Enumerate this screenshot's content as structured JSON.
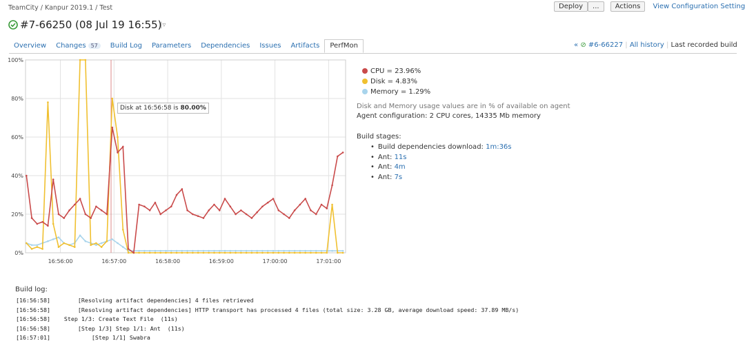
{
  "breadcrumb": {
    "items": [
      "TeamCity",
      "Kanpur 2019.1",
      "Test"
    ],
    "separator": "/"
  },
  "toolbar": {
    "deploy": "Deploy",
    "more": "...",
    "actions": "Actions",
    "settings": "View Configuration Settings"
  },
  "build_title": "#7-66250 (08 Jul 19 16:55)",
  "tabs": [
    {
      "label": "Overview"
    },
    {
      "label": "Changes",
      "badge": "57"
    },
    {
      "label": "Build Log"
    },
    {
      "label": "Parameters"
    },
    {
      "label": "Dependencies"
    },
    {
      "label": "Issues"
    },
    {
      "label": "Artifacts"
    },
    {
      "label": "PerfMon",
      "active": true
    }
  ],
  "build_nav": {
    "prev_arrow": "«",
    "prev_build": "#6-66227",
    "history": "All history",
    "last": "Last recorded build"
  },
  "chart_data": {
    "type": "line",
    "x": [
      60922,
      60928,
      60934,
      60940,
      60946,
      60952,
      60958,
      60964,
      60970,
      60976,
      60982,
      60988,
      60994,
      61000,
      61006,
      61012,
      61018,
      61024,
      61030,
      61036,
      61042,
      61048,
      61054,
      61060,
      61066,
      61072,
      61078,
      61084,
      61090,
      61096,
      61102,
      61108,
      61114,
      61120,
      61126,
      61132,
      61138,
      61144,
      61150,
      61156,
      61162,
      61168,
      61174,
      61180,
      61186,
      61192,
      61198,
      61204,
      61210,
      61216,
      61222,
      61228,
      61234,
      61240,
      61246,
      61252,
      61258,
      61264,
      61270,
      61276
    ],
    "series": [
      {
        "name": "CPU = 23.96%",
        "color": "#c94a4a",
        "values": [
          40,
          18,
          15,
          16,
          14,
          38,
          20,
          18,
          22,
          25,
          28,
          20,
          18,
          24,
          22,
          20,
          65,
          52,
          55,
          2,
          0,
          25,
          24,
          22,
          26,
          20,
          22,
          24,
          30,
          33,
          22,
          20,
          19,
          18,
          22,
          25,
          22,
          28,
          24,
          20,
          22,
          20,
          18,
          21,
          24,
          26,
          28,
          22,
          20,
          18,
          22,
          25,
          28,
          22,
          20,
          25,
          23,
          35,
          50,
          52
        ]
      },
      {
        "name": "Disk = 4.83%",
        "color": "#f0c030",
        "values": [
          5,
          2,
          3,
          2,
          78,
          15,
          3,
          5,
          4,
          3,
          100,
          100,
          4,
          5,
          3,
          6,
          80,
          60,
          12,
          0,
          0,
          0,
          0,
          0,
          0,
          0,
          0,
          0,
          0,
          0,
          0,
          0,
          0,
          0,
          0,
          0,
          0,
          0,
          0,
          0,
          0,
          0,
          0,
          0,
          0,
          0,
          0,
          0,
          0,
          0,
          0,
          0,
          0,
          0,
          0,
          0,
          0,
          25,
          0,
          0
        ]
      },
      {
        "name": "Memory = 1.29%",
        "color": "#a8d4ec",
        "values": [
          5,
          4,
          4,
          5,
          6,
          7,
          8,
          5,
          4,
          5,
          9,
          6,
          5,
          4,
          5,
          6,
          7,
          5,
          3,
          1,
          1,
          1,
          1,
          1,
          1,
          1,
          1,
          1,
          1,
          1,
          1,
          1,
          1,
          1,
          1,
          1,
          1,
          1,
          1,
          1,
          1,
          1,
          1,
          1,
          1,
          1,
          1,
          1,
          1,
          1,
          1,
          1,
          1,
          1,
          1,
          1,
          1,
          1,
          1,
          1
        ]
      }
    ],
    "xlim": [
      60921,
      61279
    ],
    "ylim": [
      0,
      100
    ],
    "xticks": [
      {
        "value": 60960,
        "label": "16:56:00"
      },
      {
        "value": 61020,
        "label": "16:57:00"
      },
      {
        "value": 61080,
        "label": "16:58:00"
      },
      {
        "value": 61140,
        "label": "16:59:00"
      },
      {
        "value": 61200,
        "label": "17:00:00"
      },
      {
        "value": 61260,
        "label": "17:01:00"
      }
    ],
    "yticks": [
      {
        "value": 0,
        "label": "0%"
      },
      {
        "value": 20,
        "label": "20%"
      },
      {
        "value": 40,
        "label": "40%"
      },
      {
        "value": 60,
        "label": "60%"
      },
      {
        "value": 80,
        "label": "80%"
      },
      {
        "value": 100,
        "label": "100%"
      }
    ],
    "grid": true,
    "tooltip": {
      "text": "Disk at 16:56:58 is",
      "value": "80.00%"
    }
  },
  "info": {
    "note": "Disk and Memory usage values are in % of available on agent",
    "agent": "Agent configuration: 2 CPU cores, 14335 Mb memory"
  },
  "stages": {
    "title": "Build stages:",
    "items": [
      {
        "label": "Build dependencies download:",
        "value": "1m:36s"
      },
      {
        "label": "Ant:",
        "value": "11s"
      },
      {
        "label": "Ant:",
        "value": "4m"
      },
      {
        "label": "Ant:",
        "value": "7s"
      }
    ]
  },
  "log": {
    "title": "Build log:",
    "lines": [
      [
        "[16:56:58]",
        "        [Resolving artifact dependencies] 4 files retrieved"
      ],
      [
        "[16:56:58]",
        "        [Resolving artifact dependencies] HTTP transport has processed 4 files (total size: 3.28 GB, average download speed: 37.89 MB/s)"
      ],
      [
        "[16:56:58]",
        "    Step 1/3: Create Text File  (11s)"
      ],
      [
        "[16:56:58]",
        "        [Step 1/3] Step 1/1: Ant  (11s)"
      ],
      [
        "[16:57:01]",
        "            [Step 1/1] Swabra"
      ]
    ]
  }
}
